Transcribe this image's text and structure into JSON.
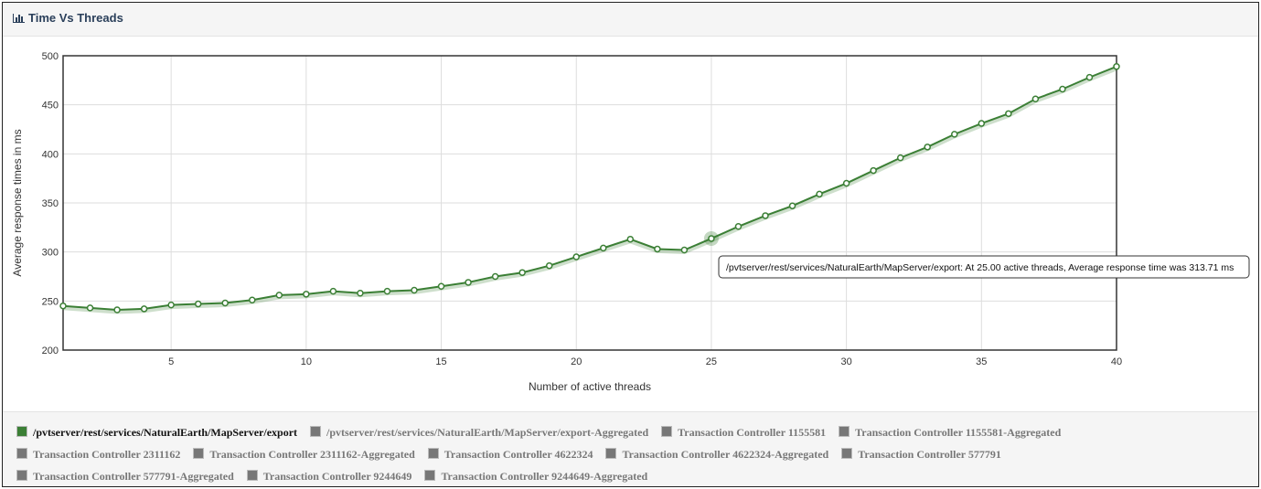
{
  "chart_data": {
    "type": "line",
    "title": "Time Vs Threads",
    "x_label": "Number of active threads",
    "y_label": "Average response times in ms",
    "x": [
      1,
      2,
      3,
      4,
      5,
      6,
      7,
      8,
      9,
      10,
      11,
      12,
      13,
      14,
      15,
      16,
      17,
      18,
      19,
      20,
      21,
      22,
      23,
      24,
      25,
      26,
      27,
      28,
      29,
      30,
      31,
      32,
      33,
      34,
      35,
      36,
      37,
      38,
      39,
      40
    ],
    "series": [
      {
        "name": "/pvtserver/rest/services/NaturalEarth/MapServer/export",
        "color": "#3b7f35",
        "values": [
          245,
          243,
          241,
          242,
          246,
          247,
          248,
          251,
          256,
          257,
          260,
          258,
          260,
          261,
          265,
          269,
          275,
          279,
          286,
          295,
          304,
          313,
          303,
          302,
          313.71,
          326,
          337,
          347,
          359,
          370,
          383,
          396,
          407,
          420,
          431,
          441,
          456,
          466,
          478,
          489
        ]
      }
    ],
    "legend_entries": [
      {
        "name": "/pvtserver/rest/services/NaturalEarth/MapServer/export-Aggregated",
        "color": "#777777"
      },
      {
        "name": "Transaction Controller 1155581",
        "color": "#777777"
      },
      {
        "name": "Transaction Controller 1155581-Aggregated",
        "color": "#777777"
      },
      {
        "name": "Transaction Controller 2311162",
        "color": "#777777"
      },
      {
        "name": "Transaction Controller 2311162-Aggregated",
        "color": "#777777"
      },
      {
        "name": "Transaction Controller 4622324",
        "color": "#777777"
      },
      {
        "name": "Transaction Controller 4622324-Aggregated",
        "color": "#777777"
      },
      {
        "name": "Transaction Controller 577791",
        "color": "#777777"
      },
      {
        "name": "Transaction Controller 577791-Aggregated",
        "color": "#777777"
      },
      {
        "name": "Transaction Controller 9244649",
        "color": "#777777"
      },
      {
        "name": "Transaction Controller 9244649-Aggregated",
        "color": "#777777"
      }
    ],
    "tooltip": "/pvtserver/rest/services/NaturalEarth/MapServer/export: At 25.00 active threads, Average response time was 313.71 ms",
    "tooltip_point": 24,
    "xlim": [
      1,
      40
    ],
    "xticks": [
      5,
      10,
      15,
      20,
      25,
      30,
      35,
      40
    ],
    "ylim": [
      200,
      500
    ],
    "yticks": [
      200,
      250,
      300,
      350,
      400,
      450,
      500
    ],
    "grid": true
  }
}
